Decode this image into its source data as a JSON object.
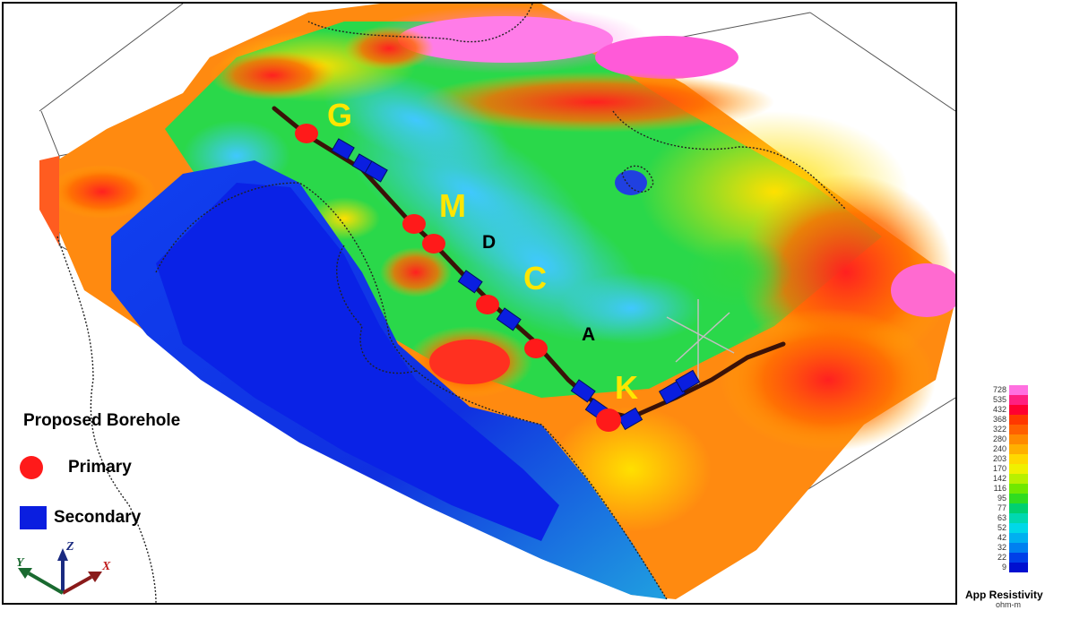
{
  "legend": {
    "title": "Proposed Borehole",
    "primary_label": "Primary",
    "secondary_label": "Secondary",
    "primary_color": "#ff1a1a",
    "secondary_color": "#0a1ee0"
  },
  "map_labels": {
    "G": "G",
    "M": "M",
    "D": "D",
    "C": "C",
    "A": "A",
    "K": "K"
  },
  "colorbar": {
    "title": "App Resistivity",
    "unit": "ohm-m",
    "ticks": [
      "728",
      "535",
      "432",
      "368",
      "322",
      "280",
      "240",
      "203",
      "170",
      "142",
      "116",
      "95",
      "77",
      "63",
      "52",
      "42",
      "32",
      "22",
      "9"
    ],
    "colors": [
      "#ff70e0",
      "#ff2080",
      "#ff0030",
      "#ff3800",
      "#ff6000",
      "#ff8a00",
      "#ffb000",
      "#ffd800",
      "#f0f000",
      "#b8f000",
      "#70e800",
      "#30dc20",
      "#00d070",
      "#00d8b0",
      "#00d8e8",
      "#00b0f0",
      "#0080f0",
      "#0040e8",
      "#0010d0"
    ]
  },
  "axes": {
    "x": "X",
    "y": "Y",
    "z": "Z"
  }
}
